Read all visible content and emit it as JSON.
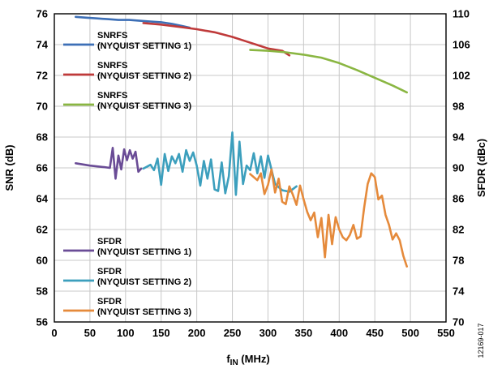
{
  "figure_id": "12169-017",
  "chart_data": {
    "type": "line",
    "xlabel": {
      "main": "f",
      "sub": "IN",
      "rest": " (MHz)"
    },
    "ylabel_left": "SNR (dB)",
    "ylabel_right": "SFDR (dBc)",
    "xlim": [
      0,
      550
    ],
    "ylim_left": [
      56,
      76
    ],
    "ylim_right": [
      70,
      110
    ],
    "x_ticks": [
      0,
      50,
      100,
      150,
      200,
      250,
      300,
      350,
      400,
      450,
      500,
      550
    ],
    "y_ticks_left": [
      56,
      58,
      60,
      62,
      64,
      66,
      68,
      70,
      72,
      74,
      76
    ],
    "y_ticks_right": [
      70,
      74,
      78,
      82,
      86,
      90,
      94,
      98,
      102,
      106,
      110
    ],
    "grid": true,
    "legends": [
      {
        "position": "upper-left",
        "entries": [
          {
            "line1": "SNRFS",
            "line2": "(NYQUIST SETTING 1)",
            "color": "#3d6fb6"
          },
          {
            "line1": "SNRFS",
            "line2": "(NYQUIST SETTING 2)",
            "color": "#bf3a3a"
          },
          {
            "line1": "SNRFS",
            "line2": "(NYQUIST SETTING 3)",
            "color": "#8ab642"
          }
        ]
      },
      {
        "position": "lower-left",
        "entries": [
          {
            "line1": "SFDR",
            "line2": "(NYQUIST SETTING 1)",
            "color": "#6a4c96"
          },
          {
            "line1": "SFDR",
            "line2": "(NYQUIST SETTING 2)",
            "color": "#3c9fbd"
          },
          {
            "line1": "SFDR",
            "line2": "(NYQUIST SETTING 3)",
            "color": "#e58a3b"
          }
        ]
      }
    ],
    "series": [
      {
        "name": "SNRFS (NYQUIST SETTING 1)",
        "axis": "left",
        "color": "#3d6fb6",
        "x": [
          30,
          45,
          60,
          75,
          90,
          105,
          120,
          135,
          150,
          165,
          180,
          190
        ],
        "y": [
          75.8,
          75.75,
          75.7,
          75.65,
          75.6,
          75.6,
          75.55,
          75.5,
          75.45,
          75.35,
          75.2,
          75.1
        ]
      },
      {
        "name": "SNRFS (NYQUIST SETTING 2)",
        "axis": "left",
        "color": "#bf3a3a",
        "x": [
          125,
          150,
          175,
          200,
          225,
          250,
          270,
          290,
          300,
          320,
          330
        ],
        "y": [
          75.4,
          75.3,
          75.15,
          75.0,
          74.8,
          74.5,
          74.2,
          73.9,
          73.75,
          73.6,
          73.3
        ]
      },
      {
        "name": "SNRFS (NYQUIST SETTING 3)",
        "axis": "left",
        "color": "#8ab642",
        "x": [
          275,
          300,
          325,
          350,
          375,
          400,
          425,
          450,
          475,
          495
        ],
        "y": [
          73.65,
          73.6,
          73.5,
          73.35,
          73.15,
          72.8,
          72.35,
          71.85,
          71.35,
          70.9
        ]
      },
      {
        "name": "SFDR (NYQUIST SETTING 1)",
        "axis": "right",
        "color": "#6a4c96",
        "x": [
          30,
          50,
          70,
          78,
          82,
          86,
          90,
          94,
          98,
          102,
          106,
          110,
          114,
          118,
          122
        ],
        "y": [
          90.6,
          90.3,
          90.1,
          90.0,
          92.6,
          88.6,
          91.6,
          89.8,
          92.4,
          91.0,
          92.3,
          91.2,
          92.1,
          89.5,
          89.9
        ]
      },
      {
        "name": "SFDR (NYQUIST SETTING 2)",
        "axis": "right",
        "color": "#3c9fbd",
        "x": [
          125,
          135,
          140,
          145,
          150,
          155,
          160,
          165,
          170,
          175,
          180,
          185,
          190,
          195,
          200,
          205,
          210,
          215,
          220,
          225,
          230,
          235,
          240,
          245,
          250,
          255,
          260,
          265,
          270,
          275,
          280,
          285,
          290,
          295,
          300,
          310,
          320,
          330,
          340
        ],
        "y": [
          89.9,
          90.4,
          89.7,
          91.2,
          87.8,
          91.8,
          89.6,
          91.5,
          90.6,
          91.8,
          89.5,
          92.3,
          90.9,
          92.0,
          90.3,
          87.7,
          90.9,
          88.6,
          91.1,
          87.2,
          87.0,
          90.7,
          86.7,
          88.9,
          94.6,
          86.5,
          93.4,
          87.9,
          90.3,
          89.7,
          91.9,
          89.3,
          91.5,
          88.7,
          91.6,
          87.9,
          87.1,
          86.9,
          87.6
        ]
      },
      {
        "name": "SFDR (NYQUIST SETTING 3)",
        "axis": "right",
        "color": "#e58a3b",
        "x": [
          275,
          285,
          290,
          295,
          300,
          305,
          310,
          315,
          320,
          325,
          330,
          335,
          340,
          345,
          350,
          355,
          360,
          365,
          370,
          375,
          380,
          385,
          390,
          395,
          400,
          405,
          410,
          415,
          420,
          425,
          430,
          435,
          440,
          445,
          450,
          455,
          460,
          465,
          470,
          475,
          480,
          485,
          490,
          495
        ],
        "y": [
          89.2,
          88.4,
          89.3,
          86.6,
          87.8,
          89.8,
          86.8,
          88.6,
          85.6,
          85.3,
          87.6,
          86.5,
          85.2,
          87.7,
          85.9,
          84.3,
          83.2,
          84.2,
          81.0,
          83.5,
          78.4,
          83.9,
          80.1,
          83.6,
          82.0,
          81.0,
          80.6,
          81.3,
          82.6,
          80.8,
          81.1,
          84.8,
          87.9,
          89.3,
          88.8,
          85.9,
          86.4,
          83.9,
          82.6,
          80.7,
          81.5,
          80.6,
          78.6,
          77.2
        ]
      }
    ]
  }
}
